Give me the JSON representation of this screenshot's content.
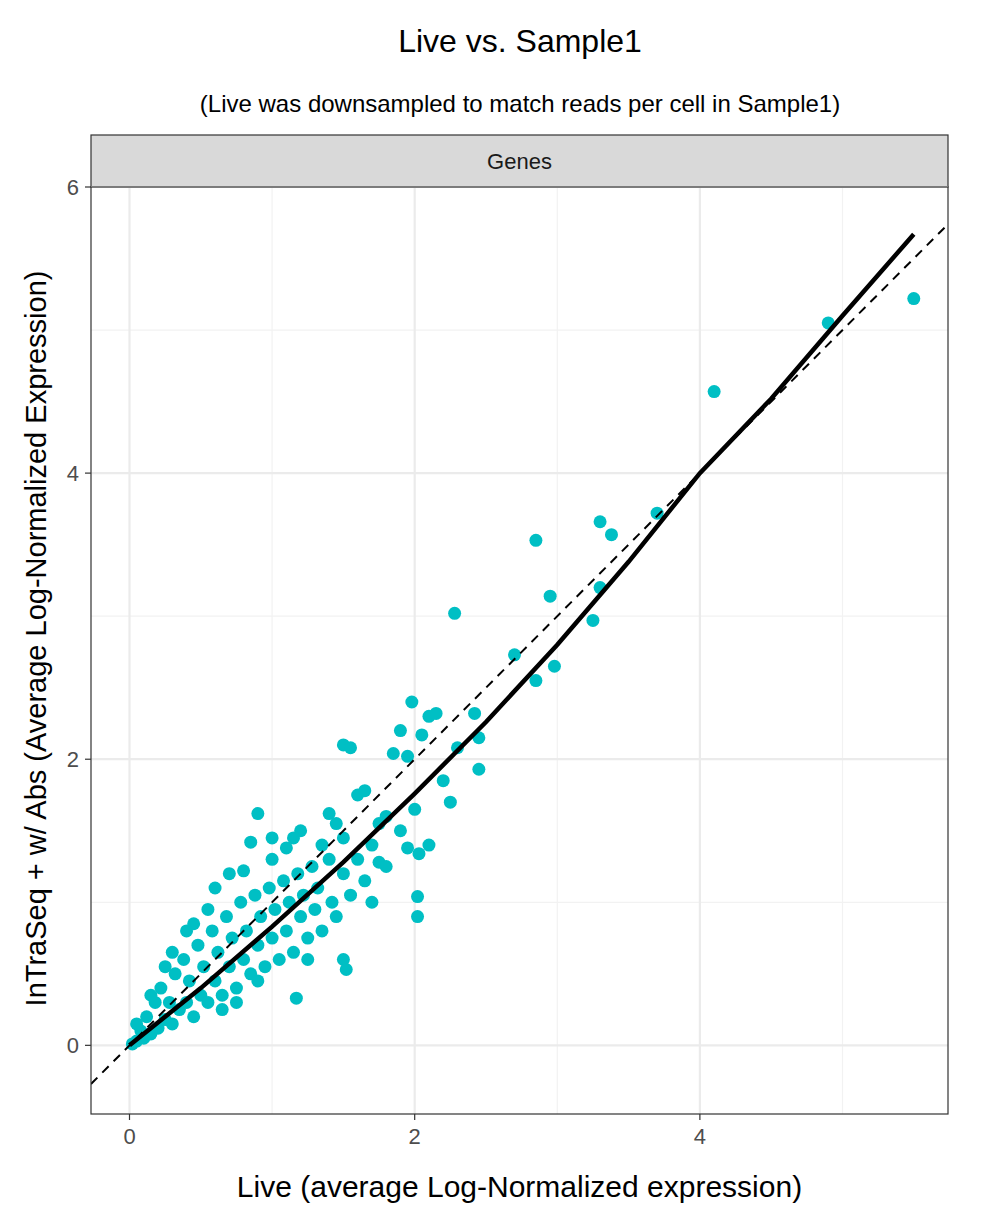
{
  "chart_data": {
    "type": "scatter",
    "title": "Live vs. Sample1",
    "subtitle": "(Live was downsampled to match reads per cell in Sample1)",
    "panel_label": "Genes",
    "x_label": "Live (average Log-Normalized expression)",
    "y_label": "InTraSeq + w/ Abs (Average Log-Normalized Expression)",
    "xlim": [
      -0.27,
      5.74
    ],
    "ylim": [
      -0.48,
      6.0
    ],
    "xticks": [
      0,
      2,
      4
    ],
    "yticks": [
      0,
      2,
      4,
      6
    ],
    "grid": true,
    "series": [
      {
        "type": "scatter",
        "color": "#00BFC4",
        "marker": "circle",
        "x": [
          5.5,
          4.9,
          4.1,
          3.7,
          3.3,
          3.38,
          2.85,
          2.95,
          3.3,
          3.25,
          2.98,
          2.7,
          2.85,
          2.28,
          1.98,
          2.1,
          2.15,
          2.42,
          2.45,
          2.45,
          2.3,
          2.05,
          1.5,
          1.55,
          2.03,
          2.02,
          2.02,
          1.5,
          1.52,
          1.17,
          1.9,
          1.85,
          1.95,
          1.8,
          1.6,
          1.65,
          2.2,
          2.25,
          2.0,
          1.95,
          2.1,
          1.7,
          1.75,
          0.9,
          1.0,
          1.2,
          1.4,
          1.45,
          1.1,
          0.8,
          0.85,
          0.02,
          0.05,
          0.08,
          0.1,
          0.12,
          0.15,
          0.18,
          0.2,
          0.22,
          0.25,
          0.28,
          0.3,
          0.32,
          0.35,
          0.38,
          0.4,
          0.42,
          0.45,
          0.48,
          0.5,
          0.52,
          0.55,
          0.58,
          0.6,
          0.62,
          0.65,
          0.68,
          0.7,
          0.72,
          0.75,
          0.78,
          0.8,
          0.82,
          0.85,
          0.88,
          0.9,
          0.92,
          0.95,
          0.98,
          1.0,
          1.02,
          1.05,
          1.08,
          1.1,
          1.12,
          1.15,
          1.18,
          1.2,
          1.22,
          1.25,
          1.28,
          1.3,
          1.32,
          1.35,
          1.4,
          1.42,
          1.45,
          1.5,
          1.55,
          1.6,
          1.65,
          1.7,
          0.6,
          0.7,
          0.45,
          0.55,
          0.3,
          0.4,
          1.0,
          1.15,
          0.65,
          0.75,
          1.25,
          0.15,
          0.25,
          0.05,
          0.9,
          1.35,
          1.5,
          1.8,
          1.9,
          1.75
        ],
        "values": [
          5.22,
          5.05,
          4.57,
          3.72,
          3.66,
          3.57,
          3.53,
          3.14,
          3.2,
          2.97,
          2.65,
          2.73,
          2.55,
          3.02,
          2.4,
          2.3,
          2.32,
          2.32,
          2.15,
          1.93,
          2.08,
          2.17,
          2.1,
          2.08,
          1.34,
          1.04,
          0.9,
          0.6,
          0.53,
          0.33,
          2.2,
          2.04,
          2.02,
          1.6,
          1.75,
          1.78,
          1.85,
          1.7,
          1.65,
          1.38,
          1.4,
          1.4,
          1.28,
          1.62,
          1.45,
          1.5,
          1.62,
          1.55,
          1.38,
          1.22,
          1.42,
          0.01,
          0.03,
          0.1,
          0.05,
          0.2,
          0.08,
          0.3,
          0.12,
          0.4,
          0.18,
          0.3,
          0.15,
          0.5,
          0.25,
          0.6,
          0.3,
          0.45,
          0.2,
          0.7,
          0.35,
          0.55,
          0.3,
          0.8,
          0.45,
          0.65,
          0.35,
          0.9,
          0.55,
          0.75,
          0.4,
          1.0,
          0.6,
          0.8,
          0.5,
          1.05,
          0.7,
          0.9,
          0.55,
          1.1,
          0.75,
          0.95,
          0.6,
          1.15,
          0.8,
          1.0,
          0.65,
          1.2,
          0.9,
          1.05,
          0.75,
          1.25,
          0.95,
          1.1,
          0.8,
          1.3,
          1.0,
          0.9,
          1.2,
          1.05,
          1.3,
          1.15,
          1.0,
          1.1,
          1.2,
          0.85,
          0.95,
          0.65,
          0.8,
          1.3,
          1.45,
          0.25,
          0.3,
          0.6,
          0.35,
          0.55,
          0.15,
          0.45,
          1.4,
          1.45,
          1.25,
          1.5,
          1.55
        ]
      },
      {
        "type": "line",
        "color": "#000000",
        "line_style": "solid",
        "x": [
          0,
          0.5,
          1,
          1.5,
          2,
          2.5,
          3,
          3.5,
          4,
          4.5,
          5,
          5.5
        ],
        "values": [
          0,
          0.4,
          0.83,
          1.28,
          1.76,
          2.26,
          2.8,
          3.38,
          4.0,
          4.52,
          5.1,
          5.67
        ]
      },
      {
        "type": "line",
        "color": "#000000",
        "line_style": "dashed",
        "x": [
          -0.27,
          5.74
        ],
        "values": [
          -0.27,
          5.74
        ]
      }
    ]
  }
}
